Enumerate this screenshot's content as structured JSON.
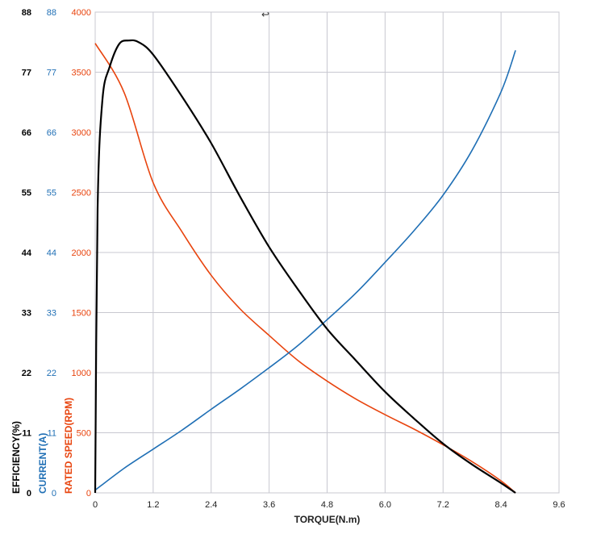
{
  "chart_data": {
    "type": "line",
    "x_axis": {
      "label": "TORQUE(N.m)",
      "range": [
        0,
        9.6
      ],
      "ticks": [
        "0",
        "1.2",
        "2.4",
        "3.6",
        "4.8",
        "6.0",
        "7.2",
        "8.4",
        "9.6"
      ]
    },
    "y_axes": [
      {
        "label": "EFFICIENCY(%)",
        "color": "#000000",
        "range": [
          0,
          88
        ],
        "ticks": [
          "0",
          "11",
          "22",
          "33",
          "44",
          "55",
          "66",
          "77",
          "88"
        ]
      },
      {
        "label": "CURRENT(A)",
        "color": "#1f6fb5",
        "range": [
          0,
          88
        ],
        "ticks": [
          "0",
          "11",
          "22",
          "33",
          "44",
          "55",
          "66",
          "77",
          "88"
        ]
      },
      {
        "label": "RATED SPEED(RPM)",
        "color": "#e8440e",
        "range": [
          0,
          4000
        ],
        "ticks": [
          "0",
          "500",
          "1000",
          "1500",
          "2000",
          "2500",
          "3000",
          "3500",
          "4000"
        ]
      }
    ],
    "grid": true,
    "series": [
      {
        "axis": 2,
        "color": "#e8440e",
        "points": [
          [
            0,
            3740
          ],
          [
            0.6,
            3330
          ],
          [
            1.2,
            2580
          ],
          [
            1.8,
            2170
          ],
          [
            2.4,
            1810
          ],
          [
            3.0,
            1530
          ],
          [
            3.6,
            1310
          ],
          [
            4.2,
            1100
          ],
          [
            4.8,
            930
          ],
          [
            5.4,
            780
          ],
          [
            6.0,
            650
          ],
          [
            6.6,
            530
          ],
          [
            7.2,
            400
          ],
          [
            7.8,
            260
          ],
          [
            8.4,
            100
          ],
          [
            8.7,
            0
          ]
        ]
      },
      {
        "axis": 1,
        "color": "#1f6fb5",
        "points": [
          [
            0,
            0.5
          ],
          [
            0.6,
            4.5
          ],
          [
            1.2,
            8.0
          ],
          [
            1.8,
            11.5
          ],
          [
            2.4,
            15.3
          ],
          [
            3.0,
            19.0
          ],
          [
            3.6,
            22.9
          ],
          [
            4.2,
            27.0
          ],
          [
            4.8,
            31.7
          ],
          [
            5.4,
            36.6
          ],
          [
            6.0,
            42.2
          ],
          [
            6.6,
            48.0
          ],
          [
            7.2,
            54.5
          ],
          [
            7.8,
            62.7
          ],
          [
            8.4,
            73.4
          ],
          [
            8.7,
            81.0
          ]
        ]
      },
      {
        "axis": 0,
        "color": "#000000",
        "points": [
          [
            0,
            0
          ],
          [
            0.05,
            52
          ],
          [
            0.15,
            72
          ],
          [
            0.3,
            78
          ],
          [
            0.5,
            82.2
          ],
          [
            0.7,
            82.8
          ],
          [
            0.9,
            82.5
          ],
          [
            1.2,
            80.2
          ],
          [
            1.8,
            72.5
          ],
          [
            2.4,
            64.0
          ],
          [
            3.0,
            54.2
          ],
          [
            3.6,
            45.0
          ],
          [
            4.2,
            37.2
          ],
          [
            4.8,
            30.0
          ],
          [
            5.4,
            24.2
          ],
          [
            6.0,
            18.5
          ],
          [
            6.6,
            13.6
          ],
          [
            7.2,
            9.0
          ],
          [
            7.8,
            5.2
          ],
          [
            8.4,
            1.8
          ],
          [
            8.7,
            0
          ]
        ]
      }
    ],
    "annotations": [
      "↩"
    ]
  }
}
